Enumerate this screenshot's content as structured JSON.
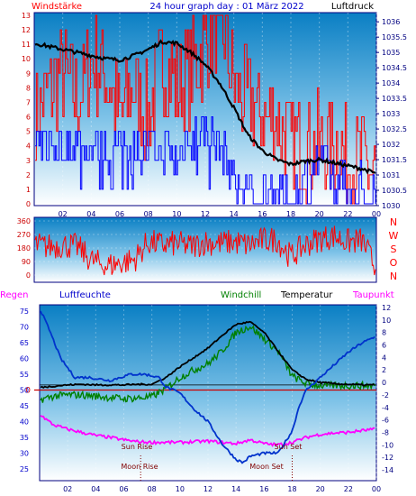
{
  "title": "24 hour graph day : 01 März 2022",
  "colors": {
    "wind": "#ff0000",
    "gust": "#0000ff",
    "pressure": "#000000",
    "humidity": "#0033cc",
    "windchill": "#008000",
    "temperature": "#000000",
    "dewpoint": "#ff00ff",
    "rain": "#cc0000",
    "winddir": "#ff0000",
    "frame": "#000080",
    "astro": "#800000"
  },
  "chart_data": [
    {
      "type": "line",
      "name": "wind-pressure",
      "left_label": "Windstärke",
      "right_label": "Luftdruck",
      "x_ticks": [
        "02",
        "04",
        "06",
        "08",
        "10",
        "12",
        "14",
        "16",
        "18",
        "20",
        "22",
        "00"
      ],
      "x_hours_range": [
        0,
        24
      ],
      "left_ticks": [
        "13",
        "12",
        "11",
        "10",
        "9",
        "8",
        "7",
        "6",
        "5",
        "4",
        "3",
        "2",
        "1",
        "0"
      ],
      "left_range": [
        0,
        13
      ],
      "right_ticks": [
        "1036",
        "1035.5",
        "1035",
        "1034.5",
        "1034",
        "1033.5",
        "1033",
        "1032.5",
        "1032",
        "1031.5",
        "1031",
        "1030.5",
        "1030"
      ],
      "right_range": [
        1030,
        1036.3
      ],
      "pressure": {
        "hours": [
          0,
          1,
          2,
          3,
          4,
          5,
          6,
          7,
          8,
          9,
          10,
          11,
          12,
          13,
          14,
          15,
          16,
          17,
          18,
          19,
          20,
          21,
          22,
          23,
          24
        ],
        "values": [
          1035.3,
          1035.2,
          1035.1,
          1035.0,
          1034.9,
          1034.8,
          1034.75,
          1034.9,
          1035.1,
          1035.35,
          1035.3,
          1035.0,
          1034.6,
          1034.0,
          1033.2,
          1032.3,
          1031.8,
          1031.5,
          1031.35,
          1031.45,
          1031.5,
          1031.4,
          1031.3,
          1031.2,
          1031.05
        ]
      },
      "wind_speed_bft": {
        "hours": [
          0,
          1,
          2,
          3,
          4,
          5,
          6,
          7,
          8,
          9,
          10,
          11,
          12,
          13,
          14,
          15,
          16,
          17,
          18,
          19,
          20,
          21,
          22,
          23,
          24
        ],
        "values": [
          4,
          4,
          4,
          4,
          4,
          4,
          4,
          4,
          4,
          4,
          3,
          5,
          5,
          4,
          2,
          1,
          1,
          1,
          0,
          2,
          3,
          2,
          2,
          1,
          1
        ]
      },
      "wind_gust_bft": {
        "hours": [
          0,
          1,
          2,
          3,
          4,
          5,
          6,
          7,
          8,
          9,
          10,
          11,
          12,
          13,
          14,
          15,
          16,
          17,
          18,
          19,
          20,
          21,
          22,
          23,
          24
        ],
        "values": [
          6,
          8,
          9,
          7,
          10,
          9,
          6,
          8,
          6,
          10,
          8,
          9,
          11,
          13,
          8,
          7,
          6,
          6,
          4,
          4,
          4,
          4,
          3,
          3,
          2
        ]
      }
    },
    {
      "type": "line",
      "name": "wind-direction",
      "y_ticks": [
        "360",
        "270",
        "180",
        "90",
        "0"
      ],
      "y_range": [
        0,
        360
      ],
      "right_labels": [
        "N",
        "W",
        "S",
        "O",
        "N"
      ],
      "direction": {
        "hours": [
          0,
          1,
          2,
          3,
          4,
          5,
          6,
          7,
          8,
          9,
          10,
          11,
          12,
          13,
          14,
          15,
          16,
          17,
          18,
          19,
          20,
          21,
          22,
          23,
          24
        ],
        "values": [
          200,
          190,
          200,
          190,
          100,
          60,
          80,
          100,
          220,
          200,
          210,
          190,
          220,
          210,
          220,
          200,
          230,
          240,
          120,
          200,
          240,
          260,
          220,
          230,
          40
        ]
      }
    },
    {
      "type": "line",
      "name": "temperature-humidity",
      "header_labels": [
        "Regen",
        "Luftfeuchte",
        "Windchill",
        "Temperatur",
        "Taupunkt"
      ],
      "x_ticks": [
        "02",
        "04",
        "06",
        "08",
        "10",
        "12",
        "14",
        "16",
        "18",
        "20",
        "22",
        "00"
      ],
      "left_ticks": [
        "75",
        "70",
        "65",
        "60",
        "55",
        "50",
        "45",
        "40",
        "35",
        "30",
        "25"
      ],
      "left_range": [
        22,
        77
      ],
      "right_ticks": [
        "12",
        "10",
        "8",
        "6",
        "4",
        "2",
        "0",
        "-2",
        "-4",
        "-6",
        "-8",
        "-10",
        "-12",
        "-14"
      ],
      "right_range": [
        -15.3,
        12.7
      ],
      "rain_zero_label": "0",
      "humidity": {
        "hours": [
          0,
          0.7,
          1.5,
          2.5,
          3.5,
          5,
          6.5,
          7.5,
          8.5,
          9,
          10,
          11,
          12,
          13,
          14,
          14.5,
          15,
          16,
          17,
          18,
          18.5,
          19,
          19.5,
          20,
          21,
          22,
          23,
          24
        ],
        "values": [
          76,
          69,
          60,
          54,
          54,
          53,
          55,
          55,
          54,
          51,
          49,
          44,
          40,
          33,
          28,
          27,
          29,
          30,
          30,
          37,
          45,
          50,
          52,
          54,
          58,
          62,
          65,
          67
        ]
      },
      "temperature": {
        "hours": [
          0,
          1,
          2,
          3,
          4,
          5,
          6,
          7,
          8,
          9,
          10,
          11,
          12,
          13,
          14,
          15,
          16,
          17,
          18,
          19,
          20,
          21,
          22,
          23,
          24
        ],
        "values": [
          -0.8,
          -0.6,
          -0.4,
          -0.3,
          -0.4,
          -0.4,
          -0.4,
          -0.3,
          -0.3,
          0.8,
          2.5,
          4.0,
          5.5,
          7.5,
          9.3,
          9.7,
          8.0,
          5.0,
          2.0,
          0.5,
          0,
          -0.2,
          -0.3,
          -0.4,
          -0.4
        ]
      },
      "windchill": {
        "hours": [
          0,
          1,
          2,
          3,
          4,
          5,
          6,
          7,
          8,
          9,
          10,
          11,
          12,
          13,
          14,
          15,
          16,
          17,
          18,
          19,
          20,
          21,
          22,
          23,
          24
        ],
        "values": [
          -2.8,
          -2.2,
          -2.0,
          -2.0,
          -2.2,
          -2.4,
          -2.6,
          -2.5,
          -2.3,
          -1.0,
          0.8,
          2.0,
          3.0,
          5.0,
          8.0,
          9.0,
          7.0,
          5.0,
          1.0,
          -0.2,
          -0.5,
          -0.5,
          -0.5,
          -0.5,
          -0.5
        ]
      },
      "dewpoint": {
        "hours": [
          0,
          0.5,
          1,
          2,
          3,
          4,
          5,
          6,
          7,
          8,
          9,
          10,
          11,
          12,
          13,
          14,
          15,
          16,
          17,
          18,
          19,
          20,
          21,
          22,
          23,
          24
        ],
        "values": [
          -5.0,
          -6.0,
          -6.8,
          -7.5,
          -8.0,
          -8.5,
          -8.8,
          -9.2,
          -9.5,
          -9.6,
          -9.6,
          -9.6,
          -9.5,
          -9.4,
          -9.6,
          -9.8,
          -9.2,
          -9.8,
          -10.0,
          -9.6,
          -8.8,
          -8.3,
          -8.1,
          -8.0,
          -7.7,
          -7.5
        ]
      },
      "reference_lines": [
        -0.4,
        -1.2
      ],
      "astro": {
        "sun_rise_label": "Sun Rise",
        "sun_set_label": "Sun Set",
        "moon_rise_label": "Moon Rise",
        "moon_set_label": "Moon Set",
        "moon_rise_hour": 7.2,
        "moon_set_hour": 18.0
      }
    }
  ]
}
